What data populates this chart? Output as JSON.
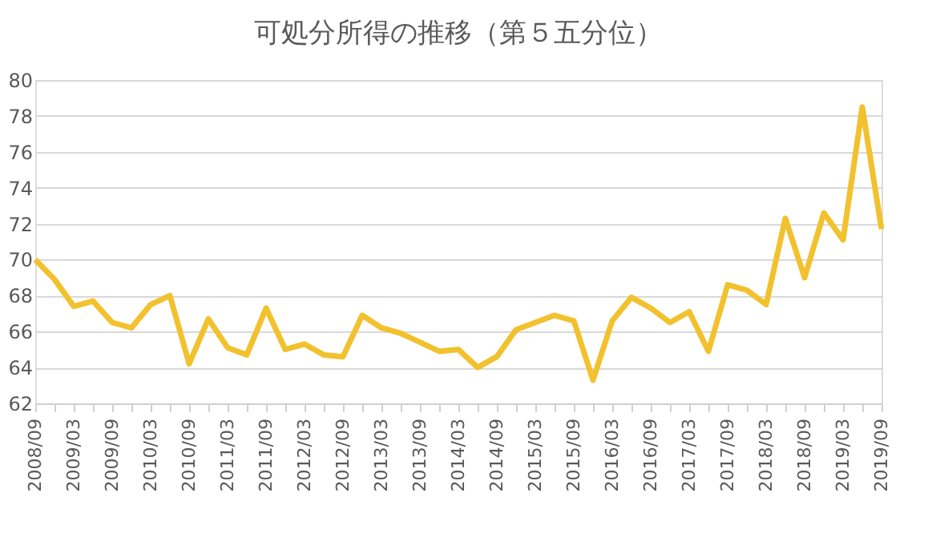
{
  "chart_data": {
    "type": "line",
    "title": "可処分所得の推移（第５五分位）",
    "categories": [
      "2008/09",
      null,
      "2009/03",
      null,
      "2009/09",
      null,
      "2010/03",
      null,
      "2010/09",
      null,
      "2011/03",
      null,
      "2011/09",
      null,
      "2012/03",
      null,
      "2012/09",
      null,
      "2013/03",
      null,
      "2013/09",
      null,
      "2014/03",
      null,
      "2014/09",
      null,
      "2015/03",
      null,
      "2015/09",
      null,
      "2016/03",
      null,
      "2016/09",
      null,
      "2017/03",
      null,
      "2017/09",
      null,
      "2018/03",
      null,
      "2018/09",
      null,
      "2019/03",
      null,
      "2019/09"
    ],
    "series": [
      {
        "color": "#f2c12e",
        "values": [
          70.0,
          68.9,
          67.4,
          67.7,
          66.5,
          66.2,
          67.5,
          68.0,
          64.2,
          66.7,
          65.1,
          64.7,
          67.3,
          65.0,
          65.3,
          64.7,
          64.6,
          66.9,
          66.2,
          65.9,
          65.4,
          64.9,
          65.0,
          64.0,
          64.6,
          66.1,
          66.5,
          66.9,
          66.6,
          63.3,
          66.6,
          67.9,
          67.3,
          66.5,
          67.1,
          64.9,
          68.6,
          68.3,
          67.5,
          72.3,
          69.0,
          72.6,
          71.1,
          78.5,
          71.7
        ]
      }
    ],
    "ylim": [
      62,
      80
    ],
    "yticks": [
      62,
      64,
      66,
      68,
      70,
      72,
      74,
      76,
      78,
      80
    ],
    "grid": "y",
    "legend": false,
    "marker": "none",
    "line_style": "solid"
  }
}
